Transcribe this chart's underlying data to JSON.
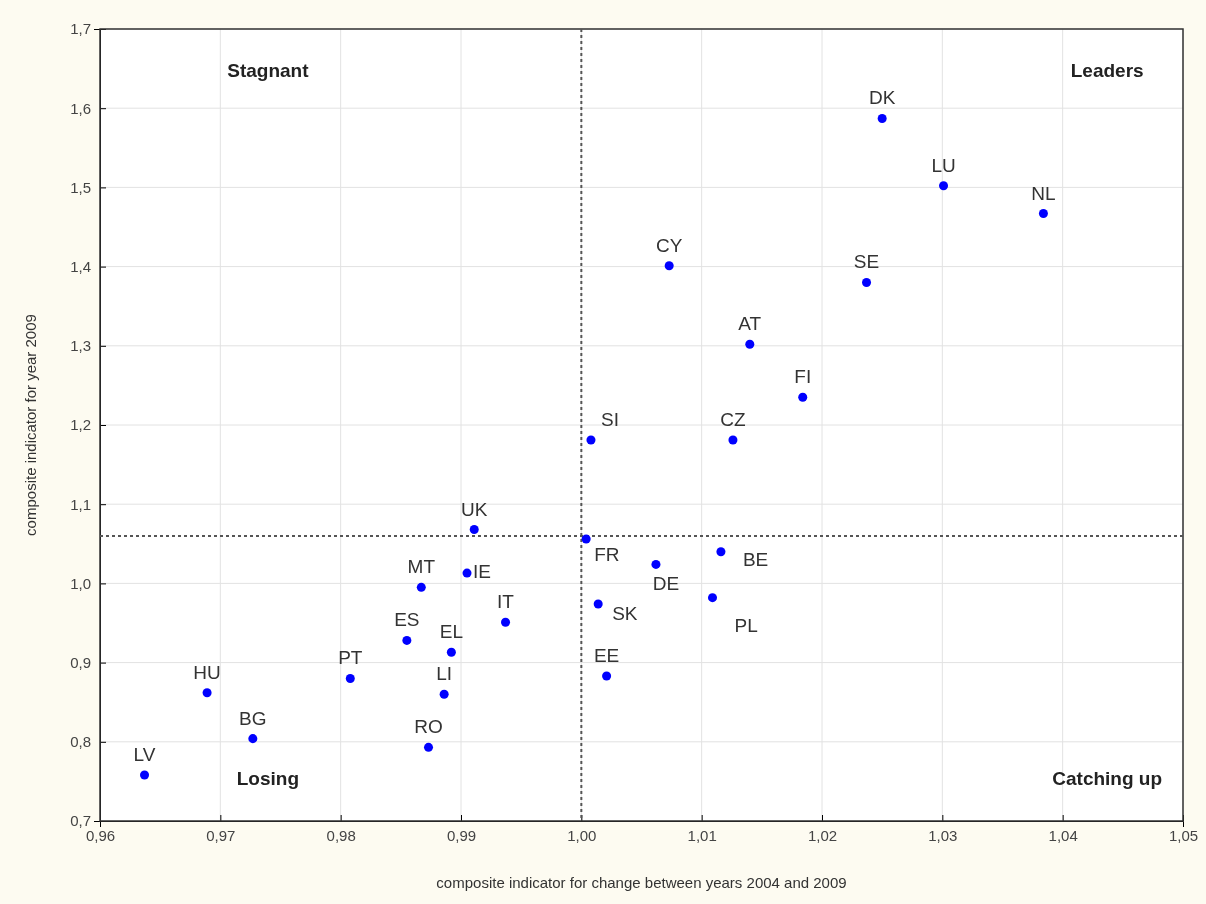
{
  "chart_data": {
    "type": "scatter",
    "xlabel": "composite indicator for change between years 2004 and 2009",
    "ylabel": "composite indicator for year 2009",
    "x": [
      1.025,
      1.0301,
      1.0384,
      1.0073,
      1.0237,
      1.014,
      1.0184,
      1.0008,
      1.0126,
      0.9911,
      1.0004,
      0.9867,
      0.9905,
      0.9937,
      0.9855,
      0.9892,
      0.9808,
      0.9886,
      0.9689,
      0.9727,
      0.9873,
      0.9637,
      1.0062,
      1.0116,
      1.0014,
      1.0109,
      1.0021
    ],
    "series": [
      {
        "color": "#0000ff",
        "values": [
          1.587,
          1.502,
          1.467,
          1.401,
          1.38,
          1.302,
          1.235,
          1.181,
          1.181,
          1.068,
          1.056,
          0.995,
          1.013,
          0.951,
          0.928,
          0.913,
          0.88,
          0.86,
          0.862,
          0.804,
          0.793,
          0.758,
          1.024,
          1.04,
          0.974,
          0.982,
          0.883
        ]
      }
    ],
    "marker": "circle",
    "grid": true,
    "xlim": [
      0.96,
      1.05
    ],
    "xticks": [
      {
        "value": 0.96,
        "label": "0,96"
      },
      {
        "value": 0.97,
        "label": "0,97"
      },
      {
        "value": 0.98,
        "label": "0,98"
      },
      {
        "value": 0.99,
        "label": "0,99"
      },
      {
        "value": 1.0,
        "label": "1,00"
      },
      {
        "value": 1.01,
        "label": "1,01"
      },
      {
        "value": 1.02,
        "label": "1,02"
      },
      {
        "value": 1.03,
        "label": "1,03"
      },
      {
        "value": 1.04,
        "label": "1,04"
      },
      {
        "value": 1.05,
        "label": "1,05"
      }
    ],
    "ylim": [
      0.7,
      1.7
    ],
    "yticks": [
      {
        "value": 0.7,
        "label": "0,7"
      },
      {
        "value": 0.8,
        "label": "0,8"
      },
      {
        "value": 0.9,
        "label": "0,9"
      },
      {
        "value": 1.0,
        "label": "1,0"
      },
      {
        "value": 1.1,
        "label": "1,1"
      },
      {
        "value": 1.2,
        "label": "1,2"
      },
      {
        "value": 1.3,
        "label": "1,3"
      },
      {
        "value": 1.4,
        "label": "1,4"
      },
      {
        "value": 1.5,
        "label": "1,5"
      },
      {
        "value": 1.6,
        "label": "1,6"
      },
      {
        "value": 1.7,
        "label": "1,7"
      }
    ],
    "ref_lines": [
      {
        "axis": "x",
        "value": 1.0,
        "line_style": "dotted",
        "color": "#555555"
      },
      {
        "axis": "y",
        "value": 1.06,
        "line_style": "dotted",
        "color": "#555555"
      }
    ],
    "annotations": [
      {
        "text": "DK",
        "x": 1.025,
        "y": 1.587
      },
      {
        "text": "LU",
        "x": 1.0301,
        "y": 1.502
      },
      {
        "text": "NL",
        "x": 1.0384,
        "y": 1.467
      },
      {
        "text": "CY",
        "x": 1.0073,
        "y": 1.401
      },
      {
        "text": "SE",
        "x": 1.0237,
        "y": 1.38
      },
      {
        "text": "AT",
        "x": 1.014,
        "y": 1.302
      },
      {
        "text": "FI",
        "x": 1.0184,
        "y": 1.235
      },
      {
        "text": "SI",
        "x": 1.0008,
        "y": 1.181
      },
      {
        "text": "CZ",
        "x": 1.0126,
        "y": 1.181
      },
      {
        "text": "UK",
        "x": 0.9911,
        "y": 1.068
      },
      {
        "text": "FR",
        "x": 1.0004,
        "y": 1.056
      },
      {
        "text": "MT",
        "x": 0.9867,
        "y": 0.995
      },
      {
        "text": "IE",
        "x": 0.9905,
        "y": 1.013
      },
      {
        "text": "IT",
        "x": 0.9937,
        "y": 0.951
      },
      {
        "text": "ES",
        "x": 0.9855,
        "y": 0.928
      },
      {
        "text": "EL",
        "x": 0.9892,
        "y": 0.913
      },
      {
        "text": "PT",
        "x": 0.9808,
        "y": 0.88
      },
      {
        "text": "LI",
        "x": 0.9886,
        "y": 0.86
      },
      {
        "text": "HU",
        "x": 0.9689,
        "y": 0.862
      },
      {
        "text": "BG",
        "x": 0.9727,
        "y": 0.804
      },
      {
        "text": "RO",
        "x": 0.9873,
        "y": 0.793
      },
      {
        "text": "LV",
        "x": 0.9637,
        "y": 0.758
      },
      {
        "text": "DE",
        "x": 1.0062,
        "y": 1.024
      },
      {
        "text": "BE",
        "x": 1.0116,
        "y": 1.04
      },
      {
        "text": "SK",
        "x": 1.0014,
        "y": 0.974
      },
      {
        "text": "PL",
        "x": 1.0109,
        "y": 0.982
      },
      {
        "text": "EE",
        "x": 1.0021,
        "y": 0.883
      },
      "Stagnant",
      "Leaders",
      "Losing",
      "Catching up"
    ]
  }
}
